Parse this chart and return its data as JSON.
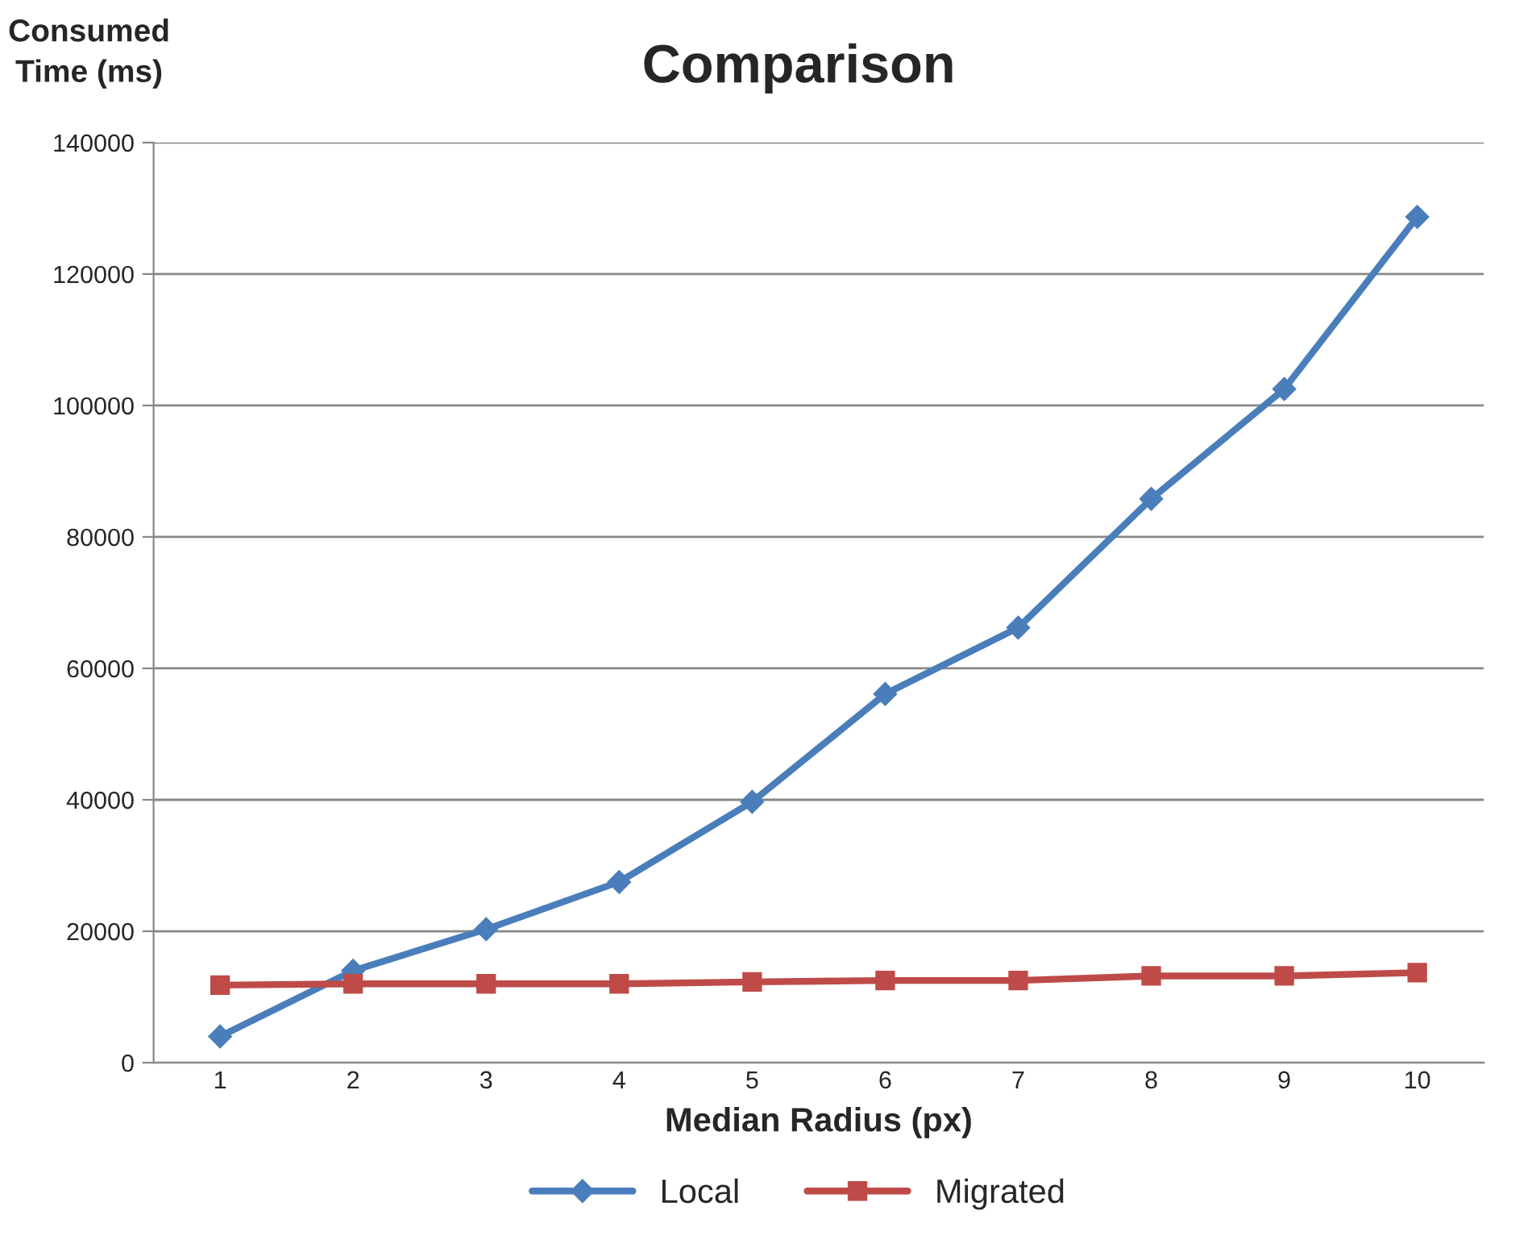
{
  "chart_data": {
    "type": "line",
    "title": "Comparison",
    "xlabel": "Median Radius (px)",
    "ylabel": "Consumed\nTime (ms)",
    "categories": [
      "1",
      "2",
      "3",
      "4",
      "5",
      "6",
      "7",
      "8",
      "9",
      "10"
    ],
    "series": [
      {
        "name": "Local",
        "color": "#4a7ebb",
        "marker": "diamond",
        "values": [
          4000,
          14000,
          20300,
          27500,
          39700,
          56100,
          66200,
          85800,
          102500,
          128700
        ]
      },
      {
        "name": "Migrated",
        "color": "#be4b48",
        "marker": "square",
        "values": [
          11800,
          12000,
          12000,
          12000,
          12300,
          12500,
          12500,
          13200,
          13200,
          13700
        ]
      }
    ],
    "ylim": [
      0,
      140000
    ],
    "yticks": [
      0,
      20000,
      40000,
      60000,
      80000,
      100000,
      120000,
      140000
    ],
    "grid": "y",
    "legend": "bottom",
    "line_style": "solid"
  }
}
